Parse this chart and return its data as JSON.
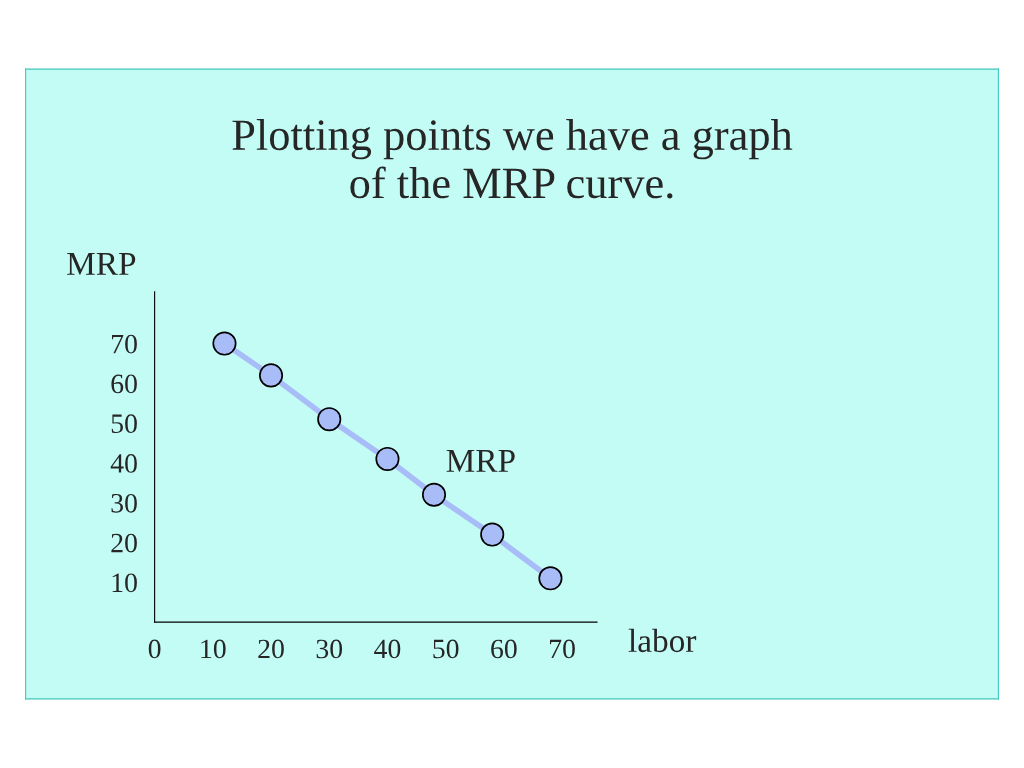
{
  "chart_data": {
    "type": "line",
    "title": "Plotting points we have a graph\nof the MRP curve.",
    "xlabel": "labor",
    "ylabel": "MRP",
    "series": [
      {
        "name": "MRP",
        "color": "#a8bcf8",
        "x": [
          12,
          20,
          30,
          40,
          48,
          58,
          68
        ],
        "values": [
          70,
          62,
          51,
          41,
          32,
          22,
          11
        ]
      }
    ],
    "xlim": [
      0,
      76
    ],
    "ylim": [
      0,
      83
    ],
    "xticks": [
      0,
      10,
      20,
      30,
      40,
      50,
      60,
      70
    ],
    "yticks": [
      10,
      20,
      30,
      40,
      50,
      60,
      70
    ],
    "marker": "circle",
    "line_style": "solid",
    "grid": false,
    "legend": false
  }
}
